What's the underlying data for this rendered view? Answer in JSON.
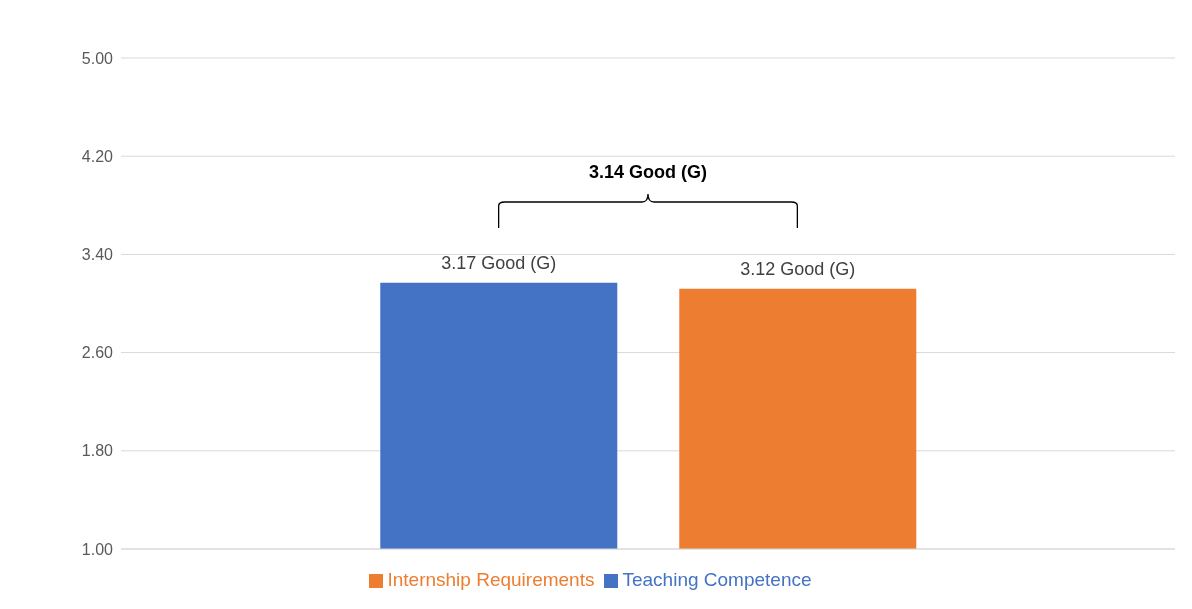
{
  "chart_data": {
    "type": "bar",
    "categories": [
      null
    ],
    "series": [
      {
        "name": "Teaching Competence",
        "color": "#4472c4",
        "values": [
          3.17
        ],
        "value_labels": [
          "3.17 Good (G)"
        ]
      },
      {
        "name": "Internship Requirements",
        "color": "#ed7d31",
        "values": [
          3.12
        ],
        "value_labels": [
          "3.12 Good (G)"
        ]
      }
    ],
    "ylim": [
      1,
      5
    ],
    "yticks": [
      {
        "value": 1,
        "label": "1.00"
      },
      {
        "value": 1.8,
        "label": "1.80"
      },
      {
        "value": 2.6,
        "label": "2.60"
      },
      {
        "value": 3.4,
        "label": "3.40"
      },
      {
        "value": 4.2,
        "label": "4.20"
      },
      {
        "value": 5,
        "label": "5.00"
      }
    ],
    "grid": "y",
    "legend": "bottom",
    "annotations": [
      "3.14 Good (G)"
    ]
  }
}
